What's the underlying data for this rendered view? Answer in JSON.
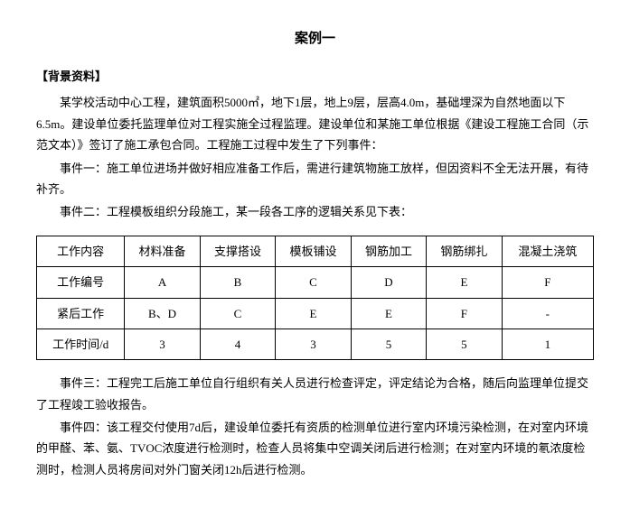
{
  "title": "案例一",
  "section_label": "【背景资料】",
  "para1": "某学校活动中心工程，建筑面积5000㎡，地下1层，地上9层，层高4.0m，基础埋深为自然地面以下6.5m。建设单位委托监理单位对工程实施全过程监理。建设单位和某施工单位根据《建设工程施工合同（示范文本）》签订了施工承包合同。工程施工过程中发生了下列事件：",
  "para2": "事件一：施工单位进场并做好相应准备工作后，需进行建筑物施工放样，但因资料不全无法开展，有待补齐。",
  "para3": "事件二：工程模板组织分段施工，某一段各工序的逻辑关系见下表：",
  "table": {
    "columns": [
      "工作内容",
      "材料准备",
      "支撑搭设",
      "模板铺设",
      "钢筋加工",
      "钢筋绑扎",
      "混凝土浇筑"
    ],
    "rows": [
      [
        "工作编号",
        "A",
        "B",
        "C",
        "D",
        "E",
        "F"
      ],
      [
        "紧后工作",
        "B、D",
        "C",
        "E",
        "E",
        "F",
        "-"
      ],
      [
        "工作时间/d",
        "3",
        "4",
        "3",
        "5",
        "5",
        "1"
      ]
    ]
  },
  "para4": "事件三：工程完工后施工单位自行组织有关人员进行检查评定，评定结论为合格，随后向监理单位提交了工程竣工验收报告。",
  "para5": "事件四：该工程交付使用7d后，建设单位委托有资质的检测单位进行室内环境污染检测，在对室内环境的甲醛、苯、氨、TVOC浓度进行检测时，检查人员将集中空调关闭后进行检测；在对室内环境的氡浓度检测时，检测人员将房间对外门窗关闭12h后进行检测。"
}
